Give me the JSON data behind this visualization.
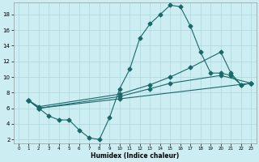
{
  "xlabel": "Humidex (Indice chaleur)",
  "bg_color": "#cceef2",
  "grid_color": "#aad8de",
  "line_color": "#1a6868",
  "xlim": [
    -0.5,
    23.5
  ],
  "ylim": [
    1.5,
    19.5
  ],
  "xticks": [
    0,
    1,
    2,
    3,
    4,
    5,
    6,
    7,
    8,
    9,
    10,
    11,
    12,
    13,
    14,
    15,
    16,
    17,
    18,
    19,
    20,
    21,
    22,
    23
  ],
  "yticks": [
    2,
    4,
    6,
    8,
    10,
    12,
    14,
    16,
    18
  ],
  "line1_x": [
    1,
    2,
    3,
    4,
    5,
    6,
    7,
    8,
    9,
    10,
    11,
    12,
    13,
    14,
    15,
    16,
    17,
    18,
    19,
    20,
    21,
    22,
    23
  ],
  "line1_y": [
    7.0,
    6.0,
    5.0,
    4.5,
    4.5,
    3.2,
    2.2,
    2.0,
    4.8,
    8.5,
    11.0,
    15.0,
    16.8,
    18.0,
    19.2,
    19.0,
    16.5,
    13.2,
    10.5,
    10.5,
    10.2,
    9.0,
    9.2
  ],
  "line2_x": [
    1,
    2,
    10,
    13,
    15,
    17,
    20,
    21,
    22,
    23
  ],
  "line2_y": [
    7.0,
    6.2,
    7.8,
    9.0,
    10.0,
    11.2,
    13.2,
    10.5,
    9.0,
    9.2
  ],
  "line3_x": [
    1,
    2,
    10,
    13,
    15,
    20,
    23
  ],
  "line3_y": [
    7.0,
    6.0,
    7.5,
    8.5,
    9.2,
    10.2,
    9.2
  ],
  "line4_x": [
    1,
    2,
    10,
    23
  ],
  "line4_y": [
    7.0,
    6.0,
    7.2,
    9.2
  ],
  "marker": "D",
  "markersize": 2.5,
  "linewidth": 0.8
}
